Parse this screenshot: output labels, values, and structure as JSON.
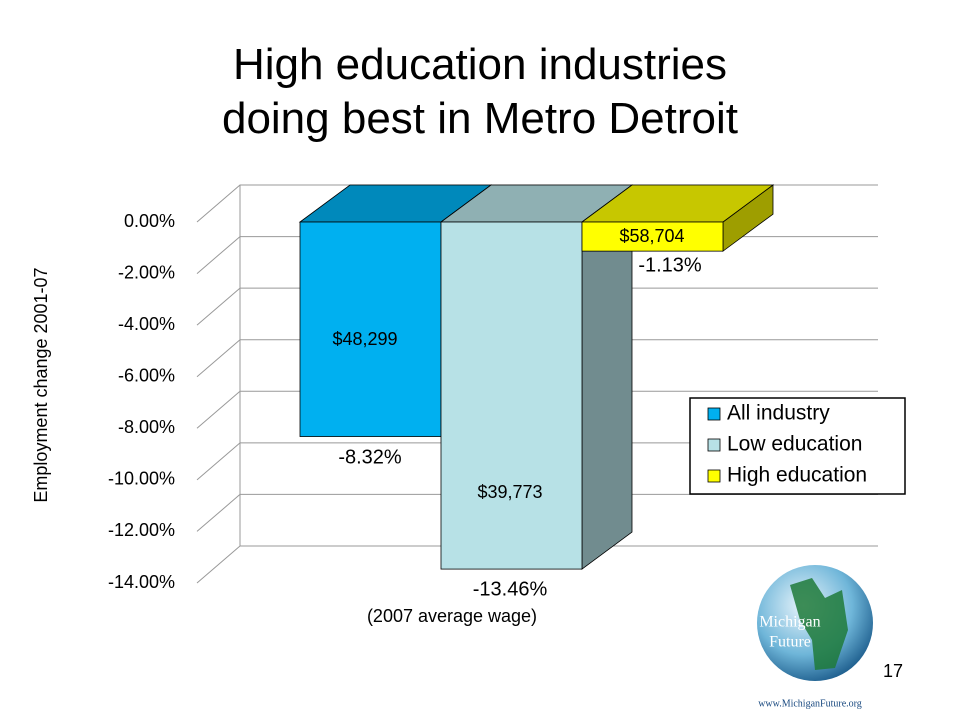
{
  "chart_data": {
    "type": "bar",
    "title": "High education industries doing best in Metro Detroit",
    "ylabel": "Employment change 2001-07",
    "xlabel": "(2007 average wage)",
    "categories": [
      "All industry",
      "Low education",
      "High education"
    ],
    "values": [
      -8.32,
      -13.46,
      -1.13
    ],
    "value_labels": [
      "-8.32%",
      "-13.46%",
      "-1.13%"
    ],
    "wages": [
      48299,
      39773,
      58704
    ],
    "wage_labels": [
      "$48,299",
      "$39,773",
      "$58,704"
    ],
    "colors": [
      "#00b0f0",
      "#b7e1e6",
      "#ffff00"
    ],
    "ylim": [
      -14,
      0
    ],
    "yticks": [
      {
        "value": 0,
        "label": "0.00%"
      },
      {
        "value": -2,
        "label": "-2.00%"
      },
      {
        "value": -4,
        "label": "-4.00%"
      },
      {
        "value": -6,
        "label": "-6.00%"
      },
      {
        "value": -8,
        "label": "-8.00%"
      },
      {
        "value": -10,
        "label": "-10.00%"
      },
      {
        "value": -12,
        "label": "-12.00%"
      },
      {
        "value": -14,
        "label": "-14.00%"
      }
    ],
    "grid": true,
    "legend": "right"
  },
  "slide": {
    "page_number": 17,
    "logo_line1": "Michigan",
    "logo_line2": "Future",
    "logo_url": "www.MichiganFuture.org"
  }
}
